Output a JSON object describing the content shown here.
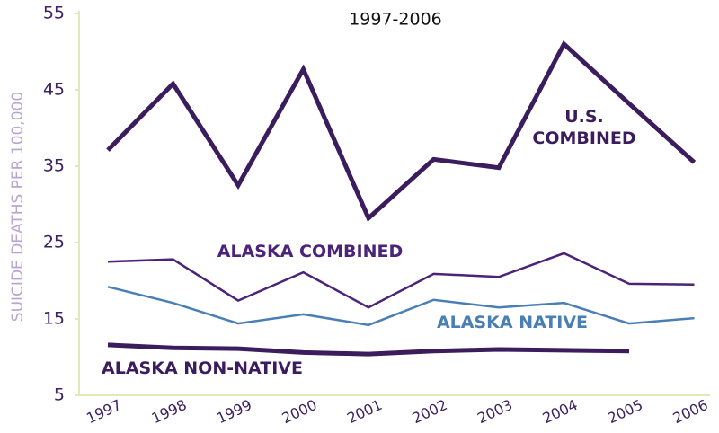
{
  "chart_data": {
    "type": "line",
    "title": "1997-2006",
    "ylabel": "SUICIDE DEATHS PER 100,000",
    "categories": [
      "1997",
      "1998",
      "1999",
      "2000",
      "2001",
      "2002",
      "2003",
      "2004",
      "2005",
      "2006"
    ],
    "ylim": [
      5,
      55
    ],
    "yticks": [
      5,
      15,
      25,
      35,
      45,
      55
    ],
    "grid": false,
    "series": [
      {
        "name": "U.S. COMBINED",
        "color": "#3b1d5e",
        "values": [
          37.1,
          45.8,
          32.5,
          47.7,
          28.2,
          35.9,
          34.8,
          51.0,
          43.2,
          35.5
        ]
      },
      {
        "name": "ALASKA COMBINED",
        "color": "#4b2378",
        "values": [
          22.5,
          22.8,
          17.4,
          21.1,
          16.5,
          20.9,
          20.5,
          23.6,
          19.6,
          19.5
        ]
      },
      {
        "name": "ALASKA NATIVE",
        "color": "#4a7fb5",
        "values": [
          19.2,
          17.1,
          14.4,
          15.6,
          14.2,
          17.5,
          16.5,
          17.1,
          14.4,
          15.1
        ]
      },
      {
        "name": "ALASKA NON-NATIVE",
        "color": "#3b1d5e",
        "values": [
          11.6,
          11.2,
          11.1,
          10.6,
          10.4,
          10.8,
          11.0,
          10.9,
          10.8,
          null
        ]
      }
    ]
  }
}
